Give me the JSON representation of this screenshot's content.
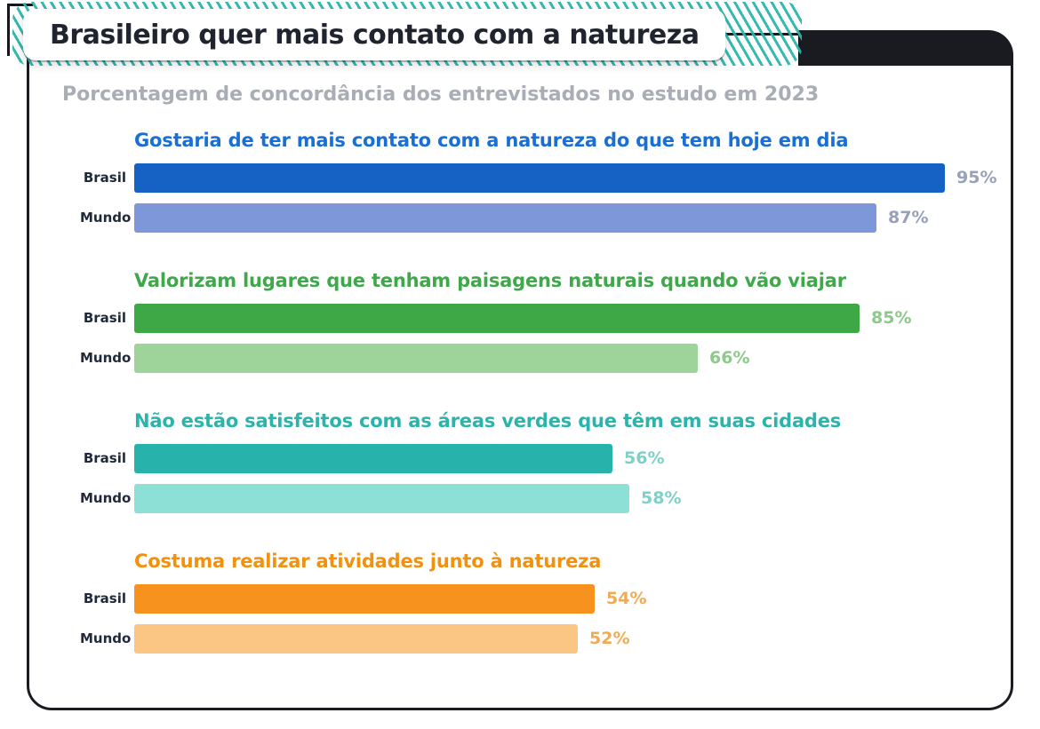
{
  "title": "Brasileiro quer mais contato com a natureza",
  "subtitle": "Porcentagem de concordância dos entrevistados no estudo em 2023",
  "colors": {
    "frame": "#1a1c22",
    "accent_teal": "#2bb5ac",
    "title_text": "#20242e",
    "subtitle_text": "#a9aeb6",
    "row_label_text": "#202a3c"
  },
  "chart_data": {
    "type": "bar",
    "orientation": "horizontal",
    "value_unit": "%",
    "xlim": [
      0,
      100
    ],
    "grid": false,
    "legend_position": "none",
    "groups": [
      {
        "heading": "Gostaria de ter mais contato com a natureza do que tem hoje em dia",
        "heading_color": "#1a6fd4",
        "value_color": "#97a1b8",
        "bars": [
          {
            "label": "Brasil",
            "value": 95,
            "display": "95%",
            "color": "#1561c4"
          },
          {
            "label": "Mundo",
            "value": 87,
            "display": "87%",
            "color": "#7e97d9"
          }
        ]
      },
      {
        "heading": "Valorizam lugares que tenham paisagens naturais quando vão viajar",
        "heading_color": "#3ea84a",
        "value_color": "#8cc98a",
        "bars": [
          {
            "label": "Brasil",
            "value": 85,
            "display": "85%",
            "color": "#3fa846"
          },
          {
            "label": "Mundo",
            "value": 66,
            "display": "66%",
            "color": "#9ed49a"
          }
        ]
      },
      {
        "heading": "Não estão satisfeitos com as áreas verdes que têm em suas cidades",
        "heading_color": "#2cb3ab",
        "value_color": "#7fd0c8",
        "bars": [
          {
            "label": "Brasil",
            "value": 56,
            "display": "56%",
            "color": "#27b3ab"
          },
          {
            "label": "Mundo",
            "value": 58,
            "display": "58%",
            "color": "#8ce0d6"
          }
        ]
      },
      {
        "heading": "Costuma realizar atividades junto à natureza",
        "heading_color": "#f0920f",
        "value_color": "#f2ab55",
        "bars": [
          {
            "label": "Brasil",
            "value": 54,
            "display": "54%",
            "color": "#f6921d"
          },
          {
            "label": "Mundo",
            "value": 52,
            "display": "52%",
            "color": "#fbc584"
          }
        ]
      }
    ]
  }
}
